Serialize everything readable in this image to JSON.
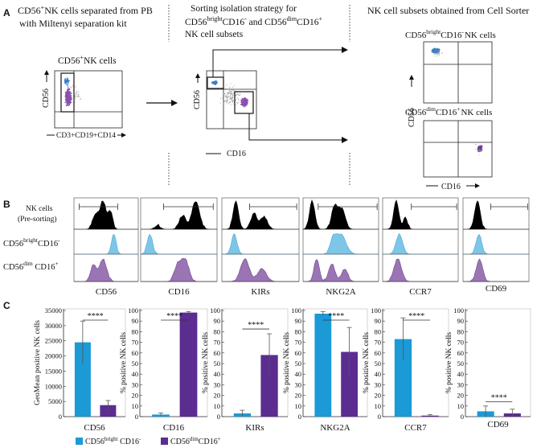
{
  "panel_a": {
    "letter": "A",
    "col1_title_l1": "CD56",
    "col1_title_sup": "+",
    "col1_title_l1b": "NK cells separated from PB",
    "col1_title_l2": "with Miltenyi  separation kit",
    "col1_plot_label": "CD56",
    "col1_plot_label_sup": "+",
    "col1_plot_label_b": "NK cells",
    "col1_yaxis": "CD56",
    "col1_xaxis": "CD3+CD19+CD14",
    "col2_title_l1": "Sorting isolation strategy for",
    "col2_title_l2a": "CD56",
    "col2_title_l2sup1": "bright",
    "col2_title_l2b": "CD16",
    "col2_title_l2sup2": "-",
    "col2_title_l2c": " and CD56",
    "col2_title_l2sup3": "dim",
    "col2_title_l2d": "CD16",
    "col2_title_l2sup4": "+",
    "col2_title_l3": "NK cell subsets",
    "col2_yaxis": "CD56",
    "col2_xaxis": "CD16",
    "col3_title": "NK cell subsets obtained from Cell Sorter",
    "col3_top_a": "CD56",
    "col3_top_sup1": "bright",
    "col3_top_b": "CD16",
    "col3_top_sup2": "-",
    "col3_top_c": "NK cells",
    "col3_bot_a": "CD56",
    "col3_bot_sup1": "dim",
    "col3_bot_b": "CD16",
    "col3_bot_sup2": "+",
    "col3_bot_c": "NK cells",
    "col3_yaxis": "CD56",
    "col3_xaxis": "CD16"
  },
  "panel_b": {
    "letter": "B",
    "row1_l1": "NK cells",
    "row1_l2": "(Pre-sorting)",
    "row2_a": "CD56",
    "row2_sup1": "bright",
    "row2_b": "CD16",
    "row2_sup2": "-",
    "row3_a": "CD56",
    "row3_sup1": "dim",
    "row3_b": " CD16",
    "row3_sup2": "+",
    "markers": [
      "CD56",
      "CD16",
      "KIRs",
      "NKG2A",
      "CCR7",
      "CD69"
    ],
    "colors": {
      "pre": "#000000",
      "bright": "#7ec6e8",
      "dim": "#9b74b4"
    }
  },
  "panel_c": {
    "letter": "C",
    "significance": "****",
    "legend_bright_a": "CD56",
    "legend_bright_sup1": "bright",
    "legend_bright_b": " CD16",
    "legend_bright_sup2": "-",
    "legend_dim_a": "CD56",
    "legend_dim_sup1": "dim",
    "legend_dim_b": "CD16",
    "legend_dim_sup2": "+"
  },
  "chart_data": [
    {
      "type": "bar",
      "title": "",
      "xlabel": "CD56",
      "ylabel": "GeoMean positive NK cells",
      "ylim": [
        0,
        35000
      ],
      "yticks": [
        0,
        5000,
        10000,
        15000,
        20000,
        25000,
        30000,
        35000
      ],
      "categories": [
        "CD56bright CD16-",
        "CD56dimCD16+"
      ],
      "values": [
        24500,
        3800
      ],
      "errors": [
        7000,
        1500
      ],
      "colors": [
        "#1b9ad6",
        "#5b2d90"
      ],
      "annotation": "****"
    },
    {
      "type": "bar",
      "title": "",
      "xlabel": "CD16",
      "ylabel": "% positive NK cells",
      "ylim": [
        0,
        100
      ],
      "yticks": [
        0,
        10,
        20,
        30,
        40,
        50,
        60,
        70,
        80,
        90,
        100
      ],
      "categories": [
        "CD56bright CD16-",
        "CD56dimCD16+"
      ],
      "values": [
        2,
        98
      ],
      "errors": [
        1.5,
        1
      ],
      "colors": [
        "#1b9ad6",
        "#5b2d90"
      ],
      "annotation": "****"
    },
    {
      "type": "bar",
      "title": "",
      "xlabel": "KIRs",
      "ylabel": "% positive NK cells",
      "ylim": [
        0,
        100
      ],
      "yticks": [
        0,
        10,
        20,
        30,
        40,
        50,
        60,
        70,
        80,
        90,
        100
      ],
      "categories": [
        "CD56bright CD16-",
        "CD56dimCD16+"
      ],
      "values": [
        3,
        58
      ],
      "errors": [
        3,
        20
      ],
      "colors": [
        "#1b9ad6",
        "#5b2d90"
      ],
      "annotation": "****"
    },
    {
      "type": "bar",
      "title": "",
      "xlabel": "NKG2A",
      "ylabel": "% positive NK cells",
      "ylim": [
        0,
        100
      ],
      "yticks": [
        0,
        10,
        20,
        30,
        40,
        50,
        60,
        70,
        80,
        90,
        100
      ],
      "categories": [
        "CD56bright CD16-",
        "CD56dimCD16+"
      ],
      "values": [
        97,
        61
      ],
      "errors": [
        2,
        23
      ],
      "colors": [
        "#1b9ad6",
        "#5b2d90"
      ],
      "annotation": "****"
    },
    {
      "type": "bar",
      "title": "",
      "xlabel": "CCR7",
      "ylabel": "% positive NK cells",
      "ylim": [
        0,
        100
      ],
      "yticks": [
        0,
        10,
        20,
        30,
        40,
        50,
        60,
        70,
        80,
        90,
        100
      ],
      "categories": [
        "CD56bright CD16-",
        "CD56dimCD16+"
      ],
      "values": [
        73,
        1
      ],
      "errors": [
        20,
        1
      ],
      "colors": [
        "#1b9ad6",
        "#5b2d90"
      ],
      "annotation": "****"
    },
    {
      "type": "bar",
      "title": "",
      "xlabel": "CD69",
      "ylabel": "% positive NK cells",
      "ylim": [
        0,
        100
      ],
      "yticks": [
        0,
        10,
        20,
        30,
        40,
        50,
        60,
        70,
        80,
        90,
        100
      ],
      "categories": [
        "CD56bright CD16-",
        "CD56dimCD16+"
      ],
      "values": [
        5,
        3
      ],
      "errors": [
        5,
        4
      ],
      "colors": [
        "#1b9ad6",
        "#5b2d90"
      ],
      "annotation": "****"
    }
  ]
}
